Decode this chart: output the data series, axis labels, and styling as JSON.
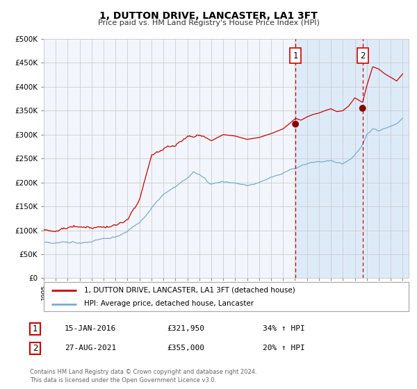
{
  "title": "1, DUTTON DRIVE, LANCASTER, LA1 3FT",
  "subtitle": "Price paid vs. HM Land Registry's House Price Index (HPI)",
  "legend_line1": "1, DUTTON DRIVE, LANCASTER, LA1 3FT (detached house)",
  "legend_line2": "HPI: Average price, detached house, Lancaster",
  "annotation1_date": "15-JAN-2016",
  "annotation1_price": "£321,950",
  "annotation1_hpi": "34% ↑ HPI",
  "annotation2_date": "27-AUG-2021",
  "annotation2_price": "£355,000",
  "annotation2_hpi": "20% ↑ HPI",
  "footnote1": "Contains HM Land Registry data © Crown copyright and database right 2024.",
  "footnote2": "This data is licensed under the Open Government Licence v3.0.",
  "sale1_year": 2016.04,
  "sale1_value": 321950,
  "sale2_year": 2021.65,
  "sale2_value": 355000,
  "vline1_year": 2016.04,
  "vline2_year": 2021.65,
  "price_line_color": "#cc0000",
  "hpi_line_color": "#7aaad0",
  "sale_dot_color": "#880000",
  "vline_color": "#cc0000",
  "shade_color": "#d0e4f7",
  "background_color": "#ffffff",
  "plot_bg_color": "#f2f6fc",
  "ylim": [
    0,
    500000
  ],
  "yticks": [
    0,
    50000,
    100000,
    150000,
    200000,
    250000,
    300000,
    350000,
    400000,
    450000,
    500000
  ],
  "xlim_start": 1995.0,
  "xlim_end": 2025.5
}
